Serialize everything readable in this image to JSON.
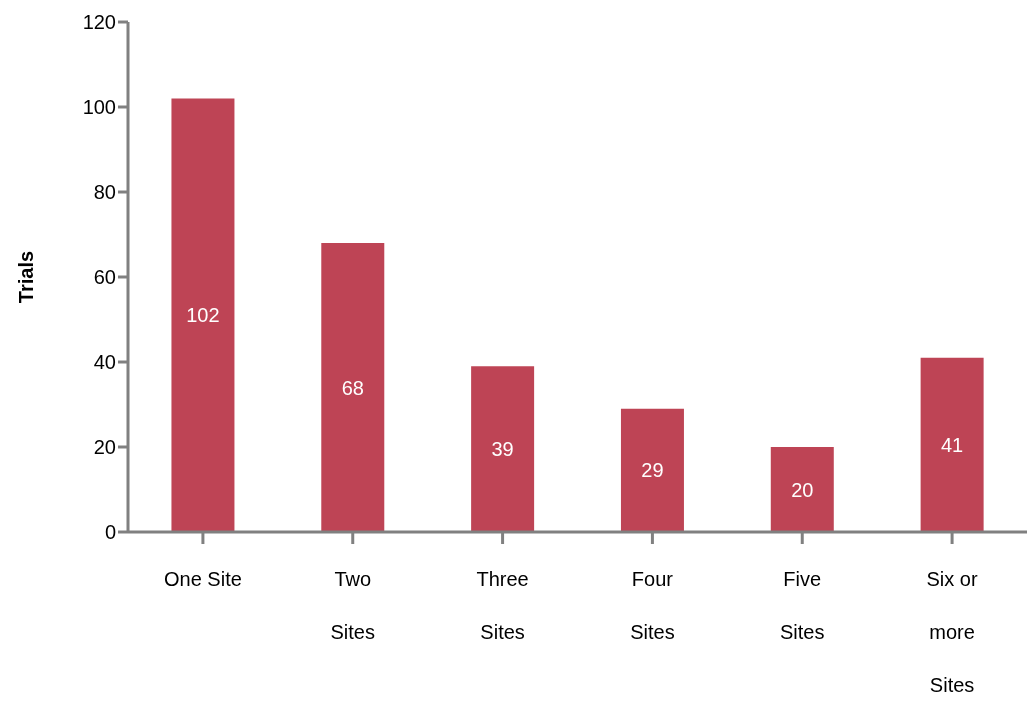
{
  "chart_data": {
    "type": "bar",
    "ylabel": "Trials",
    "categories": [
      "One Site",
      "Two Sites",
      "Three Sites",
      "Four Sites",
      "Five Sites",
      "Six or more Sites"
    ],
    "values": [
      102,
      68,
      39,
      29,
      20,
      41
    ],
    "color": "#be4455",
    "ylim": [
      0,
      120
    ],
    "yticks": [
      0,
      20,
      40,
      60,
      80,
      100,
      120
    ],
    "grid": false,
    "data_labels": true
  }
}
